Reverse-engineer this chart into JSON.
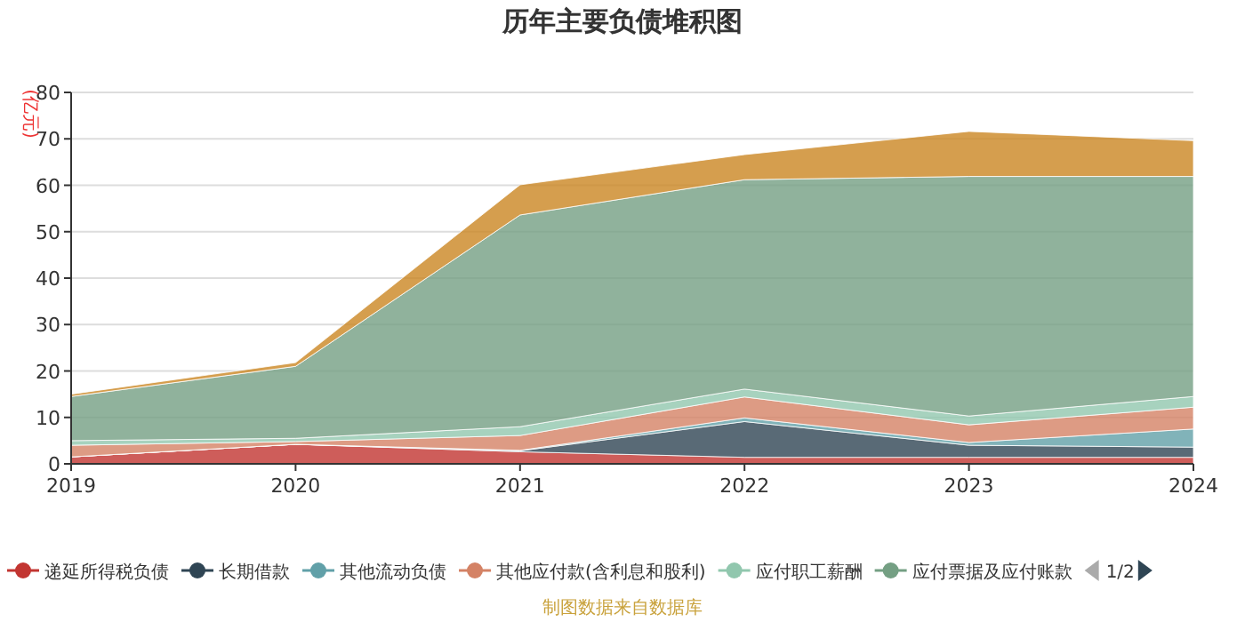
{
  "chart_data": {
    "type": "area",
    "stacked": true,
    "title": "历年主要负债堆积图",
    "ylabel": "(亿元)",
    "categories": [
      "2019",
      "2020",
      "2021",
      "2022",
      "2023",
      "2024"
    ],
    "ylim": [
      0,
      80
    ],
    "yticks": [
      0,
      10,
      20,
      30,
      40,
      50,
      60,
      70,
      80
    ],
    "grid": "y",
    "legend": "bottom",
    "series": [
      {
        "name": "递延所得税负债",
        "color": "#c23531",
        "values": [
          1.5,
          4.2,
          2.6,
          1.4,
          1.4,
          1.4
        ]
      },
      {
        "name": "长期借款",
        "color": "#2f4554",
        "values": [
          0,
          0,
          0.2,
          7.7,
          2.6,
          2.2
        ]
      },
      {
        "name": "其他流动负债",
        "color": "#61a0a8",
        "values": [
          0,
          0,
          0.1,
          0.8,
          0.6,
          3.9
        ]
      },
      {
        "name": "其他应付款(含利息和股利)",
        "color": "#d48265",
        "values": [
          2.5,
          0.6,
          3.2,
          4.5,
          3.8,
          4.7
        ]
      },
      {
        "name": "应付职工薪酬",
        "color": "#91c7ae",
        "values": [
          1.0,
          0.7,
          1.9,
          1.7,
          1.9,
          2.3
        ]
      },
      {
        "name": "应付票据及应付账款",
        "color": "#749f83",
        "values": [
          9.5,
          15.5,
          45.6,
          45.1,
          51.6,
          47.4
        ]
      },
      {
        "color": "#ca8622",
        "values": [
          0.5,
          0.8,
          6.5,
          5.4,
          9.7,
          7.7
        ]
      }
    ],
    "annotations": [
      "1/2",
      "制图数据来自数据库"
    ]
  }
}
